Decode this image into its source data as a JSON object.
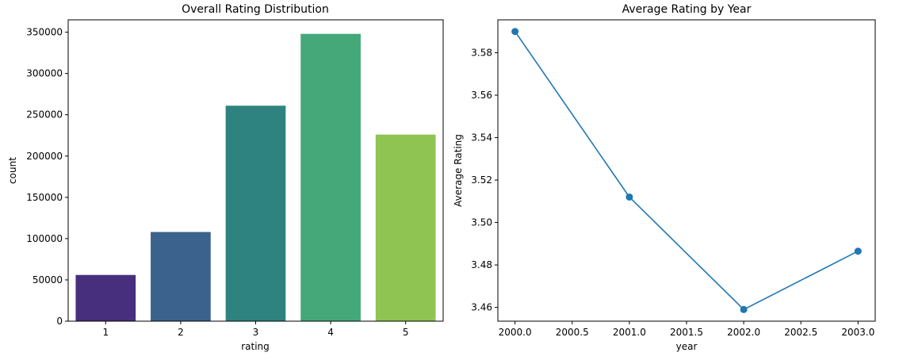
{
  "chart_data": [
    {
      "type": "bar",
      "title": "Overall Rating Distribution",
      "xlabel": "rating",
      "ylabel": "count",
      "categories": [
        "1",
        "2",
        "3",
        "4",
        "5"
      ],
      "values": [
        56000,
        108000,
        261000,
        348000,
        226000
      ],
      "colors": [
        "#472f7d",
        "#3b628c",
        "#2e8380",
        "#44a878",
        "#8fc452"
      ],
      "ylim": [
        0,
        365000
      ],
      "yticks": [
        0,
        50000,
        100000,
        150000,
        200000,
        250000,
        300000,
        350000
      ],
      "ytick_labels": [
        "0",
        "50000",
        "100000",
        "150000",
        "200000",
        "250000",
        "300000",
        "350000"
      ],
      "grid": false,
      "legend": "none"
    },
    {
      "type": "line",
      "title": "Average Rating by Year",
      "xlabel": "year",
      "ylabel": "Average Rating",
      "x": [
        2000.0,
        2001.0,
        2002.0,
        2003.0
      ],
      "series": [
        {
          "values": [
            3.59,
            3.512,
            3.459,
            3.4865
          ],
          "color": "#1f77b4",
          "marker": "circle"
        }
      ],
      "xlim": [
        1999.85,
        2003.15
      ],
      "ylim": [
        3.4535,
        3.5955
      ],
      "xticks": [
        2000.0,
        2000.5,
        2001.0,
        2001.5,
        2002.0,
        2002.5,
        2003.0
      ],
      "xtick_labels": [
        "2000.0",
        "2000.5",
        "2001.0",
        "2001.5",
        "2002.0",
        "2002.5",
        "2003.0"
      ],
      "yticks": [
        3.46,
        3.48,
        3.5,
        3.52,
        3.54,
        3.56,
        3.58
      ],
      "ytick_labels": [
        "3.46",
        "3.48",
        "3.50",
        "3.52",
        "3.54",
        "3.56",
        "3.58"
      ],
      "grid": false,
      "legend": "none"
    }
  ]
}
